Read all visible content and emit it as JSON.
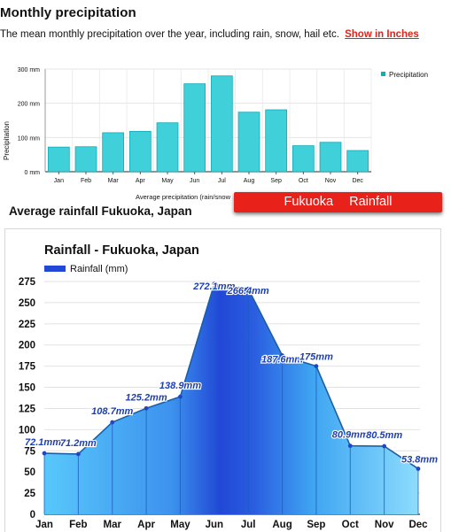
{
  "page": {
    "title": "Monthly precipitation",
    "description": "The mean monthly precipitation over the year, including rain, snow, hail etc.",
    "link_label": "Show in Inches",
    "banner": "Fukuoka Rainfall",
    "subtitle": "Average rainfall Fukuoka, Japan"
  },
  "colors": {
    "bar_fill": "#3fd0da",
    "bar_stroke": "#14a9b6",
    "area_light": "#4bbcf6",
    "area_dark": "#2350d8",
    "line": "#1a5fa6",
    "label": "#1d3fb0",
    "link": "#e0241b"
  },
  "chart_data": [
    {
      "type": "bar",
      "categories": [
        "Jan",
        "Feb",
        "Mar",
        "Apr",
        "May",
        "Jun",
        "Jul",
        "Aug",
        "Sep",
        "Oct",
        "Nov",
        "Dec"
      ],
      "series": [
        {
          "name": "Precipitation",
          "values": [
            72,
            73,
            114,
            118,
            143,
            257,
            280,
            174,
            181,
            76,
            86,
            62
          ]
        }
      ],
      "xlabel": "Average precipitation (rain/snow",
      "ylabel": "Precipitation",
      "ylim": [
        0,
        300
      ],
      "yticks": [
        0,
        100,
        200,
        300
      ],
      "ytick_labels": [
        "0 mm",
        "100 mm",
        "200 mm",
        "300 mm"
      ],
      "grid": true,
      "legend": "right"
    },
    {
      "type": "area",
      "title": "Rainfall - Fukuoka, Japan",
      "categories": [
        "Jan",
        "Feb",
        "Mar",
        "Apr",
        "May",
        "Jun",
        "Jul",
        "Aug",
        "Sep",
        "Oct",
        "Nov",
        "Dec"
      ],
      "series": [
        {
          "name": "Rainfall (mm)",
          "values": [
            72.1,
            71.2,
            108.7,
            125.2,
            138.9,
            272.1,
            266.4,
            187.6,
            175,
            80.9,
            80.5,
            53.8
          ]
        }
      ],
      "data_labels": [
        "72.1mm",
        "71.2mm",
        "108.7mm",
        "125.2mm",
        "138.9mm",
        "272.1mm",
        "266.4mm",
        "187.6mm",
        "175mm",
        "80.9mm",
        "80.5mm",
        "53.8mm"
      ],
      "ylim": [
        0,
        275
      ],
      "yticks": [
        0,
        25,
        50,
        75,
        100,
        125,
        150,
        175,
        200,
        225,
        250,
        275
      ],
      "grid": true,
      "legend": "top-left"
    }
  ]
}
